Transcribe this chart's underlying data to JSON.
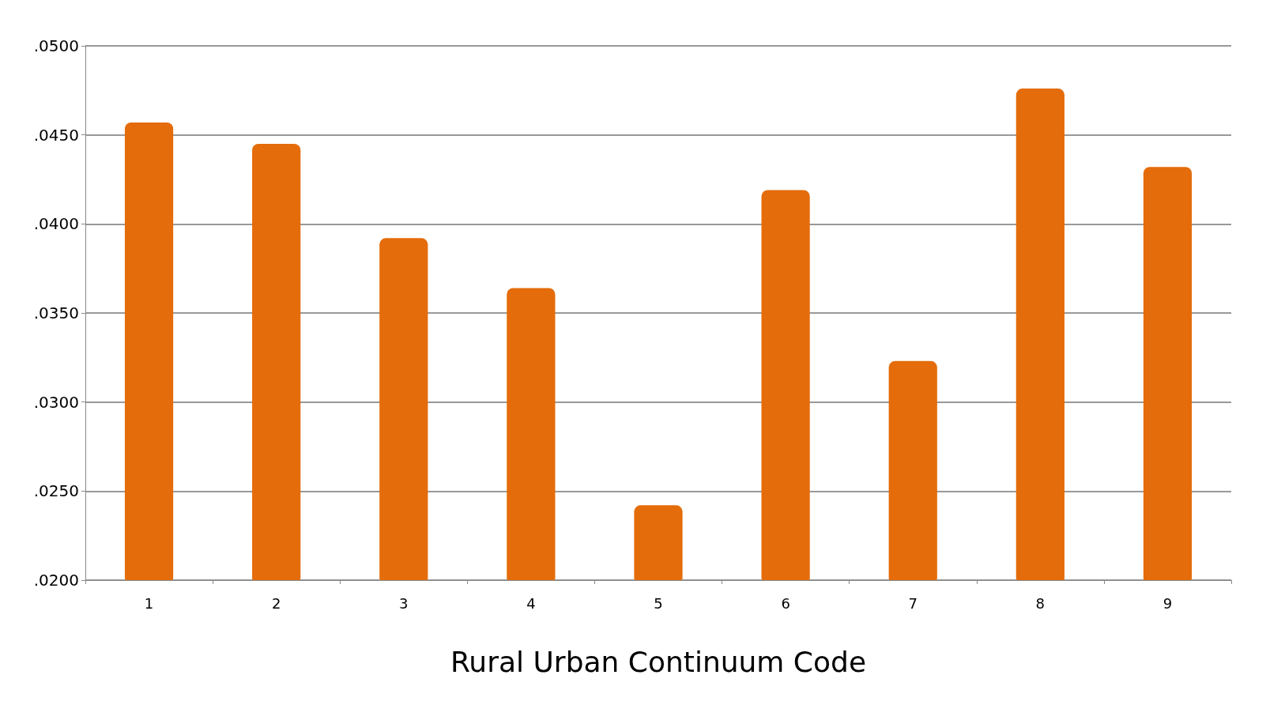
{
  "chart_data": {
    "type": "bar",
    "xlabel": "Rural Urban Continuum Code",
    "categories": [
      "1",
      "2",
      "3",
      "4",
      "5",
      "6",
      "7",
      "8",
      "9"
    ],
    "values": [
      0.0457,
      0.0445,
      0.0392,
      0.0364,
      0.0242,
      0.0419,
      0.0323,
      0.0476,
      0.0432
    ],
    "color": "#e46c0a",
    "ylim": [
      0.02,
      0.05
    ],
    "yticks": [
      {
        "value": 0.02,
        "label": ".0200"
      },
      {
        "value": 0.025,
        "label": ".0250"
      },
      {
        "value": 0.03,
        "label": ".0300"
      },
      {
        "value": 0.035,
        "label": ".0350"
      },
      {
        "value": 0.04,
        "label": ".0400"
      },
      {
        "value": 0.045,
        "label": ".0450"
      },
      {
        "value": 0.05,
        "label": ".0500"
      }
    ],
    "grid": true
  }
}
